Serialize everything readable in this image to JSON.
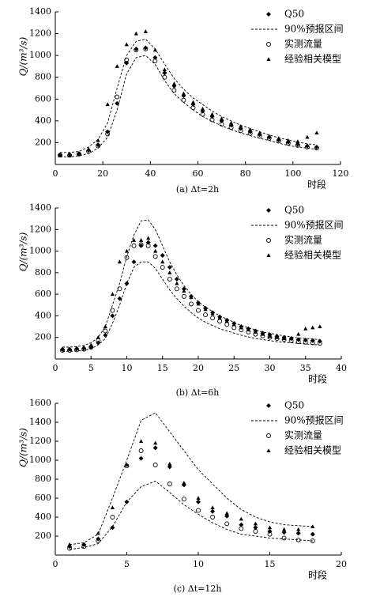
{
  "chart_data": [
    {
      "type": "scatter",
      "caption": "(a) Δt=2h",
      "xlabel": "时段",
      "ylabel": "Q/(m³/s)",
      "x": [
        2,
        6,
        10,
        14,
        18,
        22,
        26,
        30,
        34,
        38,
        42,
        46,
        50,
        54,
        58,
        62,
        66,
        70,
        74,
        78,
        82,
        86,
        90,
        94,
        98,
        102,
        106,
        110
      ],
      "xlim": [
        0,
        120
      ],
      "xticks": [
        0,
        20,
        40,
        60,
        80,
        100,
        120
      ],
      "ylim": [
        0,
        1400
      ],
      "yticks": [
        200,
        400,
        600,
        800,
        1000,
        1200,
        1400
      ],
      "series": [
        {
          "name": "Q50",
          "marker": "diamond",
          "color": "#000000",
          "values": [
            90,
            90,
            100,
            130,
            180,
            300,
            560,
            930,
            1060,
            1070,
            980,
            840,
            720,
            630,
            550,
            490,
            440,
            400,
            360,
            330,
            300,
            275,
            250,
            225,
            205,
            185,
            170,
            160
          ]
        },
        {
          "name": "90%预报区间",
          "style": "dashed",
          "color": "#000000",
          "upper": [
            110,
            110,
            120,
            160,
            230,
            380,
            700,
            1000,
            1130,
            1150,
            1060,
            920,
            790,
            690,
            610,
            550,
            490,
            440,
            400,
            360,
            330,
            300,
            270,
            245,
            225,
            205,
            190,
            180
          ],
          "lower": [
            70,
            70,
            80,
            100,
            150,
            250,
            500,
            830,
            980,
            1000,
            920,
            770,
            650,
            570,
            500,
            440,
            395,
            355,
            320,
            290,
            265,
            240,
            220,
            195,
            175,
            160,
            150,
            140
          ]
        },
        {
          "name": "实测流量",
          "marker": "circle",
          "color": "#000000",
          "values": [
            85,
            85,
            95,
            120,
            170,
            280,
            620,
            960,
            1050,
            1060,
            950,
            800,
            680,
            590,
            520,
            460,
            410,
            370,
            340,
            310,
            285,
            260,
            240,
            215,
            195,
            175,
            160,
            150
          ]
        },
        {
          "name": "经验相关模型",
          "marker": "triangle",
          "color": "#000000",
          "values": [
            80,
            80,
            95,
            140,
            220,
            550,
            900,
            1100,
            1200,
            1220,
            1050,
            870,
            740,
            650,
            570,
            510,
            460,
            420,
            380,
            350,
            320,
            290,
            260,
            240,
            220,
            210,
            250,
            290
          ]
        }
      ]
    },
    {
      "type": "scatter",
      "caption": "(b) Δt=6h",
      "xlabel": "时段",
      "ylabel": "Q/(m³/s)",
      "x": [
        1,
        2,
        3,
        4,
        5,
        6,
        7,
        8,
        9,
        10,
        11,
        12,
        13,
        14,
        15,
        16,
        17,
        18,
        19,
        20,
        21,
        22,
        23,
        24,
        25,
        26,
        27,
        28,
        29,
        30,
        31,
        32,
        33,
        34,
        35,
        36,
        37
      ],
      "xlim": [
        0,
        40
      ],
      "xticks": [
        0,
        5,
        10,
        15,
        20,
        25,
        30,
        35,
        40
      ],
      "ylim": [
        0,
        1400
      ],
      "yticks": [
        200,
        400,
        600,
        800,
        1000,
        1200,
        1400
      ],
      "series": [
        {
          "name": "Q50",
          "marker": "diamond",
          "color": "#000000",
          "values": [
            90,
            90,
            95,
            100,
            110,
            150,
            220,
            400,
            560,
            700,
            900,
            1050,
            1080,
            1050,
            960,
            850,
            740,
            650,
            580,
            520,
            470,
            430,
            390,
            360,
            330,
            300,
            280,
            260,
            240,
            225,
            210,
            200,
            190,
            180,
            175,
            170,
            165
          ]
        },
        {
          "name": "90%预报区间",
          "style": "dashed",
          "color": "#000000",
          "upper": [
            110,
            110,
            115,
            125,
            150,
            200,
            300,
            500,
            700,
            950,
            1150,
            1280,
            1290,
            1200,
            1050,
            900,
            780,
            680,
            600,
            530,
            480,
            440,
            400,
            370,
            340,
            310,
            290,
            270,
            250,
            240,
            225,
            215,
            205,
            195,
            190,
            185,
            180
          ],
          "lower": [
            70,
            70,
            75,
            80,
            95,
            130,
            190,
            330,
            500,
            700,
            850,
            900,
            900,
            840,
            740,
            640,
            560,
            490,
            430,
            380,
            340,
            310,
            280,
            260,
            240,
            220,
            205,
            190,
            180,
            170,
            160,
            155,
            150,
            145,
            140,
            135,
            130
          ]
        },
        {
          "name": "实测流量",
          "marker": "circle",
          "color": "#000000",
          "values": [
            80,
            80,
            85,
            90,
            110,
            170,
            260,
            450,
            650,
            940,
            1050,
            1060,
            1050,
            950,
            850,
            740,
            650,
            580,
            510,
            450,
            410,
            380,
            350,
            320,
            290,
            270,
            250,
            230,
            215,
            200,
            190,
            180,
            170,
            160,
            155,
            150,
            145
          ]
        },
        {
          "name": "经验相关模型",
          "marker": "triangle",
          "color": "#000000",
          "values": [
            90,
            90,
            100,
            110,
            130,
            200,
            300,
            600,
            900,
            1000,
            1100,
            1100,
            1120,
            1000,
            900,
            800,
            700,
            630,
            570,
            510,
            460,
            420,
            380,
            350,
            320,
            290,
            270,
            250,
            230,
            210,
            200,
            190,
            190,
            230,
            280,
            290,
            300
          ]
        }
      ]
    },
    {
      "type": "scatter",
      "caption": "(c) Δt=12h",
      "xlabel": "时段",
      "ylabel": "Q/(m³/s)",
      "x": [
        1,
        2,
        3,
        4,
        5,
        6,
        7,
        8,
        9,
        10,
        11,
        12,
        13,
        14,
        15,
        16,
        17,
        18
      ],
      "xlim": [
        0,
        20
      ],
      "xticks": [
        0,
        5,
        10,
        15,
        20
      ],
      "ylim": [
        0,
        1600
      ],
      "yticks": [
        200,
        400,
        600,
        800,
        1000,
        1200,
        1400,
        1600
      ],
      "series": [
        {
          "name": "Q50",
          "marker": "diamond",
          "color": "#000000",
          "values": [
            90,
            110,
            170,
            290,
            560,
            1020,
            1130,
            930,
            740,
            560,
            460,
            410,
            320,
            290,
            250,
            240,
            230,
            220
          ]
        },
        {
          "name": "90%预报区间",
          "style": "dashed",
          "color": "#000000",
          "upper": [
            110,
            130,
            220,
            600,
            1000,
            1420,
            1500,
            1300,
            1100,
            900,
            750,
            600,
            480,
            400,
            350,
            320,
            310,
            300
          ],
          "lower": [
            60,
            80,
            120,
            300,
            560,
            720,
            780,
            660,
            530,
            430,
            340,
            270,
            220,
            200,
            180,
            170,
            160,
            150
          ]
        },
        {
          "name": "实测流量",
          "marker": "circle",
          "color": "#000000",
          "values": [
            70,
            90,
            150,
            400,
            940,
            1100,
            950,
            750,
            590,
            470,
            400,
            330,
            280,
            250,
            220,
            180,
            160,
            150
          ]
        },
        {
          "name": "经验相关模型",
          "marker": "triangle",
          "color": "#000000",
          "values": [
            110,
            110,
            230,
            500,
            950,
            1200,
            1180,
            960,
            760,
            600,
            500,
            440,
            380,
            330,
            290,
            270,
            270,
            300
          ]
        }
      ]
    }
  ]
}
